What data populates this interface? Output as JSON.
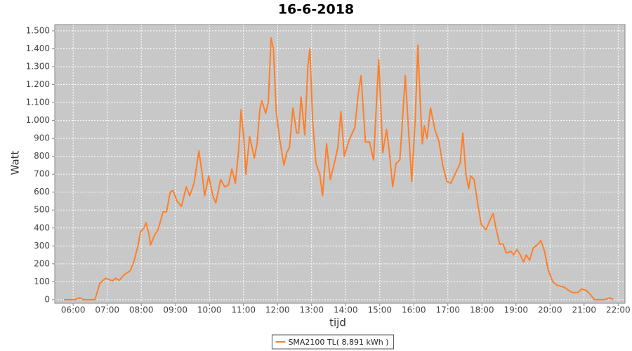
{
  "chart_data": {
    "type": "line",
    "title": "16-6-2018",
    "x_label": "tijd",
    "y_label": "Watt",
    "x": [
      5.73,
      6.05,
      6.19,
      6.3,
      6.64,
      6.78,
      6.95,
      7.15,
      7.25,
      7.35,
      7.5,
      7.67,
      7.78,
      7.9,
      7.98,
      8.08,
      8.14,
      8.23,
      8.27,
      8.39,
      8.49,
      8.64,
      8.74,
      8.85,
      8.93,
      9.05,
      9.18,
      9.32,
      9.42,
      9.55,
      9.69,
      9.79,
      9.86,
      9.98,
      10.1,
      10.19,
      10.33,
      10.45,
      10.56,
      10.66,
      10.76,
      10.85,
      10.93,
      11.01,
      11.07,
      11.18,
      11.32,
      11.4,
      11.48,
      11.54,
      11.65,
      11.73,
      11.81,
      11.88,
      11.96,
      12.06,
      12.19,
      12.27,
      12.35,
      12.45,
      12.56,
      12.62,
      12.69,
      12.8,
      12.89,
      12.95,
      13.03,
      13.13,
      13.24,
      13.32,
      13.44,
      13.55,
      13.69,
      13.77,
      13.86,
      13.96,
      14.1,
      14.27,
      14.37,
      14.45,
      14.58,
      14.7,
      14.82,
      14.97,
      15.09,
      15.2,
      15.28,
      15.38,
      15.48,
      15.59,
      15.65,
      15.75,
      15.86,
      15.94,
      16.04,
      16.12,
      16.19,
      16.25,
      16.31,
      16.39,
      16.49,
      16.62,
      16.74,
      16.85,
      16.97,
      17.09,
      17.26,
      17.36,
      17.44,
      17.53,
      17.61,
      17.67,
      17.77,
      17.88,
      17.98,
      18.12,
      18.25,
      18.33,
      18.41,
      18.52,
      18.62,
      18.72,
      18.85,
      18.93,
      19.03,
      19.13,
      19.22,
      19.3,
      19.4,
      19.51,
      19.65,
      19.73,
      19.84,
      19.94,
      20.08,
      20.21,
      20.41,
      20.56,
      20.66,
      20.82,
      20.93,
      21.07,
      21.18,
      21.3,
      21.59,
      21.75,
      21.86
    ],
    "series": [
      {
        "name": "SMA2100 TL( 8,891 kWh )",
        "color": "#ff7f2a",
        "values": [
          0,
          0,
          10,
          0,
          0,
          90,
          120,
          105,
          120,
          108,
          140,
          160,
          210,
          300,
          380,
          400,
          430,
          360,
          305,
          360,
          390,
          490,
          490,
          600,
          610,
          550,
          520,
          630,
          580,
          650,
          830,
          700,
          580,
          690,
          580,
          540,
          670,
          630,
          640,
          730,
          650,
          820,
          1060,
          900,
          700,
          910,
          790,
          870,
          1060,
          1110,
          1040,
          1100,
          1460,
          1400,
          1050,
          900,
          750,
          820,
          850,
          1070,
          930,
          930,
          1130,
          920,
          1300,
          1400,
          1000,
          760,
          700,
          580,
          870,
          670,
          780,
          850,
          1050,
          800,
          890,
          960,
          1150,
          1250,
          880,
          880,
          780,
          1340,
          820,
          950,
          830,
          630,
          760,
          780,
          950,
          1250,
          900,
          660,
          1000,
          1420,
          1100,
          870,
          970,
          900,
          1070,
          950,
          880,
          750,
          660,
          650,
          720,
          760,
          930,
          700,
          620,
          690,
          670,
          530,
          420,
          390,
          450,
          480,
          400,
          310,
          310,
          260,
          270,
          250,
          280,
          250,
          210,
          250,
          220,
          290,
          310,
          330,
          270,
          170,
          100,
          80,
          70,
          50,
          40,
          40,
          60,
          50,
          30,
          0,
          0,
          10,
          0
        ]
      }
    ],
    "xlim": [
      5.46,
      22.2
    ],
    "ylim": [
      -20,
      1535
    ],
    "xticks": [
      {
        "value": 6,
        "label": "06:00"
      },
      {
        "value": 7,
        "label": "07:00"
      },
      {
        "value": 8,
        "label": "08:00"
      },
      {
        "value": 9,
        "label": "09:00"
      },
      {
        "value": 10,
        "label": "10:00"
      },
      {
        "value": 11,
        "label": "11:00"
      },
      {
        "value": 12,
        "label": "12:00"
      },
      {
        "value": 13,
        "label": "13:00"
      },
      {
        "value": 14,
        "label": "14:00"
      },
      {
        "value": 15,
        "label": "15:00"
      },
      {
        "value": 16,
        "label": "16:00"
      },
      {
        "value": 17,
        "label": "17:00"
      },
      {
        "value": 18,
        "label": "18:00"
      },
      {
        "value": 19,
        "label": "19:00"
      },
      {
        "value": 20,
        "label": "20:00"
      },
      {
        "value": 21,
        "label": "21:00"
      },
      {
        "value": 22,
        "label": "22:00"
      }
    ],
    "yticks": [
      0,
      100,
      200,
      300,
      400,
      500,
      600,
      700,
      800,
      900,
      {
        "value": 1000,
        "label": "1.000"
      },
      {
        "value": 1100,
        "label": "1.100"
      },
      {
        "value": 1200,
        "label": "1.200"
      },
      {
        "value": 1300,
        "label": "1.300"
      },
      {
        "value": 1400,
        "label": "1.400"
      },
      {
        "value": 1500,
        "label": "1.500"
      }
    ],
    "grid": true,
    "plot_background": "#c8c8c8",
    "legend": "bottom"
  }
}
